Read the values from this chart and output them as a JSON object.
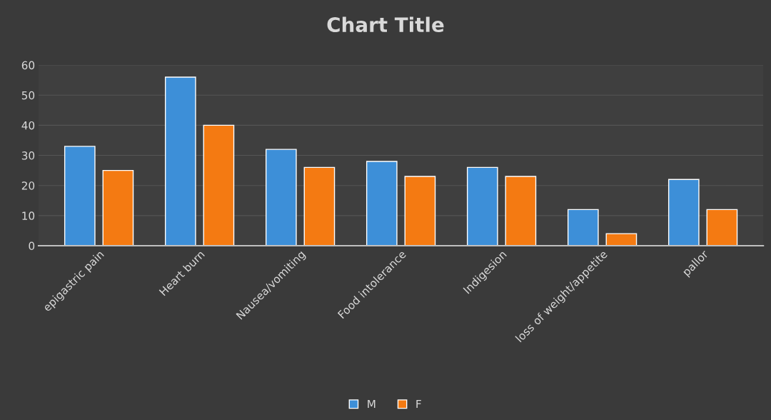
{
  "chart_data": {
    "type": "bar",
    "title": "Chart Title",
    "categories": [
      "epigastric pain",
      "Heart burn",
      "Nausea/vomiting",
      "Food intolerance",
      "Indigesion",
      "loss of weight/appetite",
      "pallor"
    ],
    "series": [
      {
        "name": "M",
        "color": "#3d8fd8",
        "values": [
          33,
          56,
          32,
          28,
          26,
          12,
          22
        ]
      },
      {
        "name": "F",
        "color": "#f47a12",
        "values": [
          25,
          40,
          26,
          23,
          23,
          4,
          12
        ]
      }
    ],
    "ylim": [
      0,
      60
    ],
    "yticks": [
      0,
      10,
      20,
      30,
      40,
      50,
      60
    ],
    "grid": "y",
    "legend": "bottom"
  }
}
